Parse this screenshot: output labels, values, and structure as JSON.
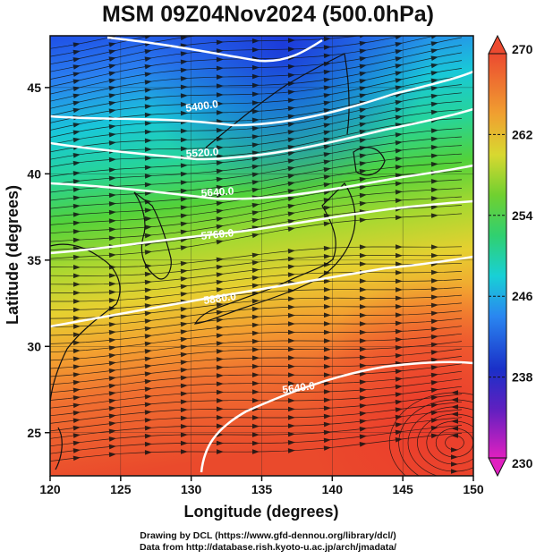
{
  "title": "MSM 09Z04Nov2024 (500.0hPa)",
  "chart_data": {
    "type": "heatmap",
    "xlabel": "Longitude (degrees)",
    "ylabel": "Latitude  (degrees)",
    "xlim": [
      120,
      150
    ],
    "ylim": [
      22.5,
      48
    ],
    "x_ticks": [
      "120",
      "125",
      "130",
      "135",
      "140",
      "145",
      "150"
    ],
    "y_ticks": [
      "25",
      "30",
      "35",
      "40",
      "45"
    ],
    "colorbar": {
      "min": 230,
      "max": 270,
      "ticks": [
        "270",
        "262",
        "254",
        "246",
        "238",
        "230"
      ]
    },
    "contour_labels": [
      "5400.0",
      "5520.0",
      "5640.0",
      "5760.0",
      "5880.0",
      "5640.0",
      "5880.0",
      "5400.0"
    ],
    "annotations": [
      "5400.0",
      "5520.0",
      "5640.0",
      "5760.0",
      "5880.0"
    ]
  },
  "credits": {
    "line1": "Drawing by DCL (https://www.gfd-dennou.org/library/dcl/)",
    "line2": "Data from http://database.rish.kyoto-u.ac.jp/arch/jmadata/"
  },
  "colors": {
    "cold": "#2060e0",
    "warm": "#e84030",
    "contour": "#ffffff"
  }
}
